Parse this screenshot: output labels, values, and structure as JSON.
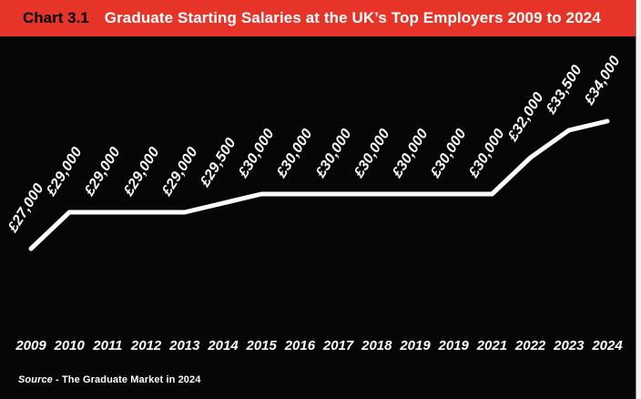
{
  "header": {
    "chart_label": "Chart 3.1",
    "title": "Graduate Starting Salaries at the UK’s Top Employers 2009 to 2024"
  },
  "source": {
    "label": "Source",
    "text": " - The Graduate Market in 2024"
  },
  "chart_data": {
    "type": "line",
    "title": "Graduate Starting Salaries at the UK’s Top Employers 2009 to 2024",
    "categories": [
      "2009",
      "2010",
      "2011",
      "2012",
      "2013",
      "2014",
      "2015",
      "2016",
      "2017",
      "2018",
      "2019",
      "2019",
      "2021",
      "2022",
      "2023",
      "2024"
    ],
    "values": [
      27000,
      29000,
      29000,
      29000,
      29000,
      29500,
      30000,
      30000,
      30000,
      30000,
      30000,
      30000,
      30000,
      32000,
      33500,
      34000
    ],
    "value_labels": [
      "£27,000",
      "£29,000",
      "£29,000",
      "£29,000",
      "£29,000",
      "£29,500",
      "£30,000",
      "£30,000",
      "£30,000",
      "£30,000",
      "£30,000",
      "£30,000",
      "£30,000",
      "£32,000",
      "£33,500",
      "£34,000"
    ],
    "xlabel": "",
    "ylabel": "",
    "ylim": [
      26000,
      35500
    ],
    "grid": false,
    "legend": false,
    "label_rotation_deg": -58,
    "line_color": "#ffffff",
    "background": "#060606"
  },
  "colors": {
    "header_bg": "#e63428",
    "header_label_text": "#000000",
    "header_title_text": "#ffffff",
    "chart_bg": "#060606",
    "line": "#ffffff",
    "axis_text": "#ffffff",
    "page_margin": "#f2f2f2"
  }
}
